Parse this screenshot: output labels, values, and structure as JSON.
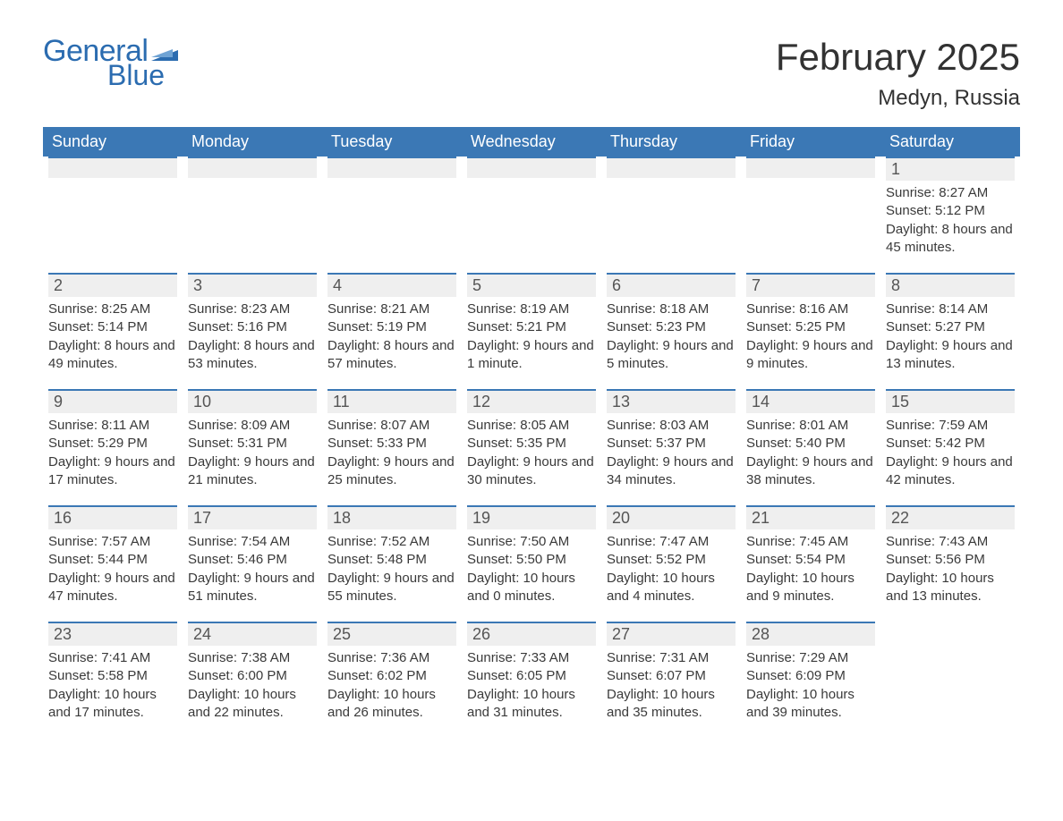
{
  "logo": {
    "text_general": "General",
    "text_blue": "Blue",
    "brand_color": "#2b6cb0"
  },
  "header": {
    "month": "February 2025",
    "location": "Medyn, Russia"
  },
  "colors": {
    "header_bg": "#3b78b5",
    "header_text": "#ffffff",
    "daybar_bg": "#efefef",
    "daybar_border": "#3b78b5",
    "body_text": "#3a3a3a",
    "title_text": "#323232"
  },
  "dayNames": [
    "Sunday",
    "Monday",
    "Tuesday",
    "Wednesday",
    "Thursday",
    "Friday",
    "Saturday"
  ],
  "calendar": {
    "first_day_index": 6,
    "days": [
      {
        "n": 1,
        "sunrise": "8:27 AM",
        "sunset": "5:12 PM",
        "daylight": "8 hours and 45 minutes."
      },
      {
        "n": 2,
        "sunrise": "8:25 AM",
        "sunset": "5:14 PM",
        "daylight": "8 hours and 49 minutes."
      },
      {
        "n": 3,
        "sunrise": "8:23 AM",
        "sunset": "5:16 PM",
        "daylight": "8 hours and 53 minutes."
      },
      {
        "n": 4,
        "sunrise": "8:21 AM",
        "sunset": "5:19 PM",
        "daylight": "8 hours and 57 minutes."
      },
      {
        "n": 5,
        "sunrise": "8:19 AM",
        "sunset": "5:21 PM",
        "daylight": "9 hours and 1 minute."
      },
      {
        "n": 6,
        "sunrise": "8:18 AM",
        "sunset": "5:23 PM",
        "daylight": "9 hours and 5 minutes."
      },
      {
        "n": 7,
        "sunrise": "8:16 AM",
        "sunset": "5:25 PM",
        "daylight": "9 hours and 9 minutes."
      },
      {
        "n": 8,
        "sunrise": "8:14 AM",
        "sunset": "5:27 PM",
        "daylight": "9 hours and 13 minutes."
      },
      {
        "n": 9,
        "sunrise": "8:11 AM",
        "sunset": "5:29 PM",
        "daylight": "9 hours and 17 minutes."
      },
      {
        "n": 10,
        "sunrise": "8:09 AM",
        "sunset": "5:31 PM",
        "daylight": "9 hours and 21 minutes."
      },
      {
        "n": 11,
        "sunrise": "8:07 AM",
        "sunset": "5:33 PM",
        "daylight": "9 hours and 25 minutes."
      },
      {
        "n": 12,
        "sunrise": "8:05 AM",
        "sunset": "5:35 PM",
        "daylight": "9 hours and 30 minutes."
      },
      {
        "n": 13,
        "sunrise": "8:03 AM",
        "sunset": "5:37 PM",
        "daylight": "9 hours and 34 minutes."
      },
      {
        "n": 14,
        "sunrise": "8:01 AM",
        "sunset": "5:40 PM",
        "daylight": "9 hours and 38 minutes."
      },
      {
        "n": 15,
        "sunrise": "7:59 AM",
        "sunset": "5:42 PM",
        "daylight": "9 hours and 42 minutes."
      },
      {
        "n": 16,
        "sunrise": "7:57 AM",
        "sunset": "5:44 PM",
        "daylight": "9 hours and 47 minutes."
      },
      {
        "n": 17,
        "sunrise": "7:54 AM",
        "sunset": "5:46 PM",
        "daylight": "9 hours and 51 minutes."
      },
      {
        "n": 18,
        "sunrise": "7:52 AM",
        "sunset": "5:48 PM",
        "daylight": "9 hours and 55 minutes."
      },
      {
        "n": 19,
        "sunrise": "7:50 AM",
        "sunset": "5:50 PM",
        "daylight": "10 hours and 0 minutes."
      },
      {
        "n": 20,
        "sunrise": "7:47 AM",
        "sunset": "5:52 PM",
        "daylight": "10 hours and 4 minutes."
      },
      {
        "n": 21,
        "sunrise": "7:45 AM",
        "sunset": "5:54 PM",
        "daylight": "10 hours and 9 minutes."
      },
      {
        "n": 22,
        "sunrise": "7:43 AM",
        "sunset": "5:56 PM",
        "daylight": "10 hours and 13 minutes."
      },
      {
        "n": 23,
        "sunrise": "7:41 AM",
        "sunset": "5:58 PM",
        "daylight": "10 hours and 17 minutes."
      },
      {
        "n": 24,
        "sunrise": "7:38 AM",
        "sunset": "6:00 PM",
        "daylight": "10 hours and 22 minutes."
      },
      {
        "n": 25,
        "sunrise": "7:36 AM",
        "sunset": "6:02 PM",
        "daylight": "10 hours and 26 minutes."
      },
      {
        "n": 26,
        "sunrise": "7:33 AM",
        "sunset": "6:05 PM",
        "daylight": "10 hours and 31 minutes."
      },
      {
        "n": 27,
        "sunrise": "7:31 AM",
        "sunset": "6:07 PM",
        "daylight": "10 hours and 35 minutes."
      },
      {
        "n": 28,
        "sunrise": "7:29 AM",
        "sunset": "6:09 PM",
        "daylight": "10 hours and 39 minutes."
      }
    ]
  },
  "labels": {
    "sunrise": "Sunrise:",
    "sunset": "Sunset:",
    "daylight": "Daylight:"
  }
}
